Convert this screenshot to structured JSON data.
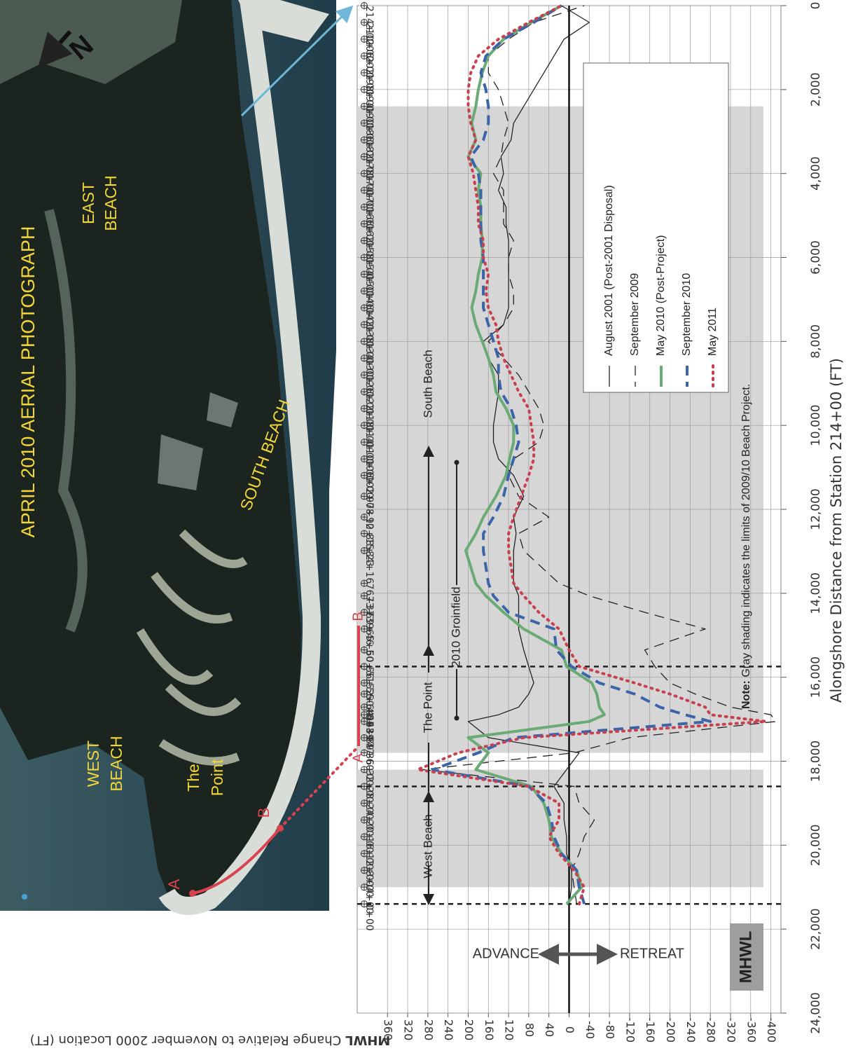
{
  "chart_data": {
    "type": "line",
    "x_title": "Alongshore Distance from Station 214+00 (FT)",
    "y_title_bold": "MHWL",
    "y_title": "Change Relative to November 2000 Location (FT)",
    "xlim": [
      0,
      24000
    ],
    "xticks": [
      0,
      {
        "value": 2000,
        "label": "2,000"
      },
      {
        "value": 4000,
        "label": "4,000"
      },
      {
        "value": 6000,
        "label": "6,000"
      },
      {
        "value": 8000,
        "label": "8,000"
      },
      {
        "value": 10000,
        "label": "10,000"
      },
      {
        "value": 12000,
        "label": "12,000"
      },
      {
        "value": 14000,
        "label": "14,000"
      },
      {
        "value": 16000,
        "label": "16,000"
      },
      {
        "value": 18000,
        "label": "18,000"
      },
      {
        "value": 20000,
        "label": "20,000"
      },
      {
        "value": 22000,
        "label": "22,000"
      },
      {
        "value": 24000,
        "label": "24,000"
      }
    ],
    "ylim": [
      -420,
      420
    ],
    "yticks": [
      360,
      320,
      280,
      240,
      200,
      160,
      120,
      80,
      40,
      0,
      -40,
      -80,
      -120,
      -160,
      -200,
      -240,
      -280,
      -320,
      -360,
      -400
    ],
    "grid": true,
    "legend": "top-right",
    "stations": [
      "0+00",
      "4+00",
      "8+00",
      "12+00",
      "16+00",
      "20+00",
      "24+00",
      "28+00",
      "32+00",
      "36+00",
      "39+60",
      "43+47",
      "45+07",
      "46+89",
      "50+00",
      "52+64",
      "56+56",
      "60+51",
      "65+50",
      "69+46",
      "73+39",
      "76+37",
      "84+16",
      "88+23",
      "92+15",
      "97+10",
      "102+08",
      "106+00",
      "110+00",
      "114+00",
      "118+00",
      "122+00",
      "126+00",
      "130+00",
      "134+00",
      "138+00",
      "142+00",
      "146+00",
      "150+00",
      "154+00",
      "158+00",
      "162+00",
      "166+00",
      "170+00",
      "174+00",
      "178+00",
      "182+00",
      "186+00",
      "190+00",
      "194+00",
      "198+00",
      "202+00",
      "206+00",
      "210+00",
      "214+00"
    ],
    "x": [
      21400,
      21000,
      20600,
      20200,
      19800,
      19400,
      19000,
      18600,
      18200,
      17800,
      17440,
      17053,
      16893,
      16711,
      16400,
      16136,
      15744,
      15349,
      14850,
      14454,
      14061,
      13763,
      12984,
      12577,
      12185,
      11690,
      11192,
      10800,
      10400,
      10000,
      9600,
      9200,
      8800,
      8400,
      8000,
      7600,
      7200,
      6800,
      6400,
      6000,
      5600,
      5200,
      4800,
      4400,
      4000,
      3600,
      3200,
      2800,
      2400,
      2000,
      1600,
      1200,
      800,
      400,
      0
    ],
    "series": [
      {
        "name": "August 2001 (Post-2001 Disposal)",
        "color": "#222222",
        "line_style": "solid",
        "width": 1.3,
        "values": [
          0,
          -5,
          -5,
          5,
          5,
          10,
          10,
          30,
          5,
          -20,
          160,
          200,
          140,
          100,
          80,
          70,
          80,
          90,
          100,
          100,
          100,
          110,
          110,
          105,
          110,
          90,
          110,
          140,
          150,
          150,
          145,
          140,
          140,
          160,
          170,
          130,
          120,
          120,
          120,
          120,
          120,
          125,
          125,
          140,
          130,
          135,
          115,
          110,
          90,
          70,
          50,
          30,
          10,
          -40,
          15
        ]
      },
      {
        "name": "September 2009",
        "color": "#222222",
        "line_style": "dashed",
        "width": 1.3,
        "values": [
          -15,
          -10,
          -5,
          -20,
          -30,
          -50,
          -20,
          -10,
          290,
          -10,
          -120,
          -410,
          -400,
          -320,
          -250,
          -200,
          -170,
          -150,
          -270,
          -150,
          -40,
          20,
          90,
          100,
          40,
          100,
          120,
          110,
          60,
          50,
          60,
          80,
          100,
          130,
          160,
          130,
          110,
          110,
          120,
          120,
          110,
          130,
          130,
          130,
          150,
          135,
          130,
          120,
          130,
          140,
          160,
          160,
          120,
          70,
          -30
        ]
      },
      {
        "name": "May 2010 (Post-Project)",
        "color": "#6aaa75",
        "line_style": "solid",
        "width": 4,
        "values": [
          5,
          -25,
          -15,
          15,
          35,
          40,
          50,
          75,
          185,
          160,
          200,
          -40,
          -70,
          -60,
          -55,
          -45,
          5,
          15,
          90,
          130,
          165,
          185,
          205,
          185,
          170,
          145,
          125,
          118,
          110,
          110,
          125,
          145,
          150,
          160,
          172,
          185,
          193,
          185,
          180,
          172,
          172,
          175,
          175,
          180,
          175,
          200,
          185,
          193,
          185,
          180,
          172,
          160,
          130,
          75,
          15
        ]
      },
      {
        "name": "September 2010",
        "color": "#3c64a8",
        "line_style": "dashed",
        "width": 4,
        "values": [
          -30,
          -20,
          -15,
          15,
          30,
          35,
          45,
          80,
          270,
          180,
          110,
          -280,
          -230,
          -180,
          -130,
          -60,
          -5,
          25,
          30,
          120,
          150,
          160,
          170,
          170,
          150,
          130,
          120,
          110,
          100,
          105,
          115,
          135,
          140,
          140,
          150,
          160,
          170,
          170,
          170,
          170,
          175,
          175,
          175,
          175,
          180,
          195,
          170,
          160,
          160,
          165,
          175,
          165,
          130,
          70,
          15
        ]
      },
      {
        "name": "May 2011",
        "color": "#c8404e",
        "line_style": "dotted",
        "width": 4,
        "values": [
          -20,
          -30,
          -10,
          20,
          40,
          20,
          20,
          80,
          300,
          220,
          90,
          -390,
          -280,
          -270,
          -200,
          -130,
          -20,
          0,
          20,
          60,
          90,
          110,
          120,
          120,
          110,
          95,
          80,
          70,
          70,
          75,
          80,
          100,
          115,
          130,
          140,
          145,
          160,
          165,
          160,
          170,
          170,
          180,
          180,
          185,
          190,
          200,
          185,
          195,
          200,
          200,
          195,
          180,
          140,
          80,
          15
        ]
      }
    ],
    "shaded_ranges": [
      [
        2400,
        17800
      ],
      [
        18200,
        21000
      ]
    ],
    "reference_lines": [
      15744,
      18600,
      21400
    ],
    "annotations": {
      "west_beach": "West Beach",
      "the_point": "The Point",
      "south_beach": "South Beach",
      "groinfield": "2010 Groinfield",
      "advance": "ADVANCE",
      "retreat": "RETREAT",
      "mhwl": "MHWL",
      "note_label": "Note:",
      "note": "Gray shading indicates the limits of 2009/10 Beach Project.",
      "a": "A",
      "b": "B"
    }
  },
  "photo": {
    "title": "APRIL 2010 AERIAL PHOTOGRAPH",
    "west_beach": [
      "WEST",
      "BEACH"
    ],
    "the_point": [
      "The",
      "Point"
    ],
    "east_beach": [
      "EAST",
      "BEACH"
    ],
    "south_beach": "SOUTH BEACH",
    "north": "N",
    "a": "A",
    "b": "B"
  }
}
